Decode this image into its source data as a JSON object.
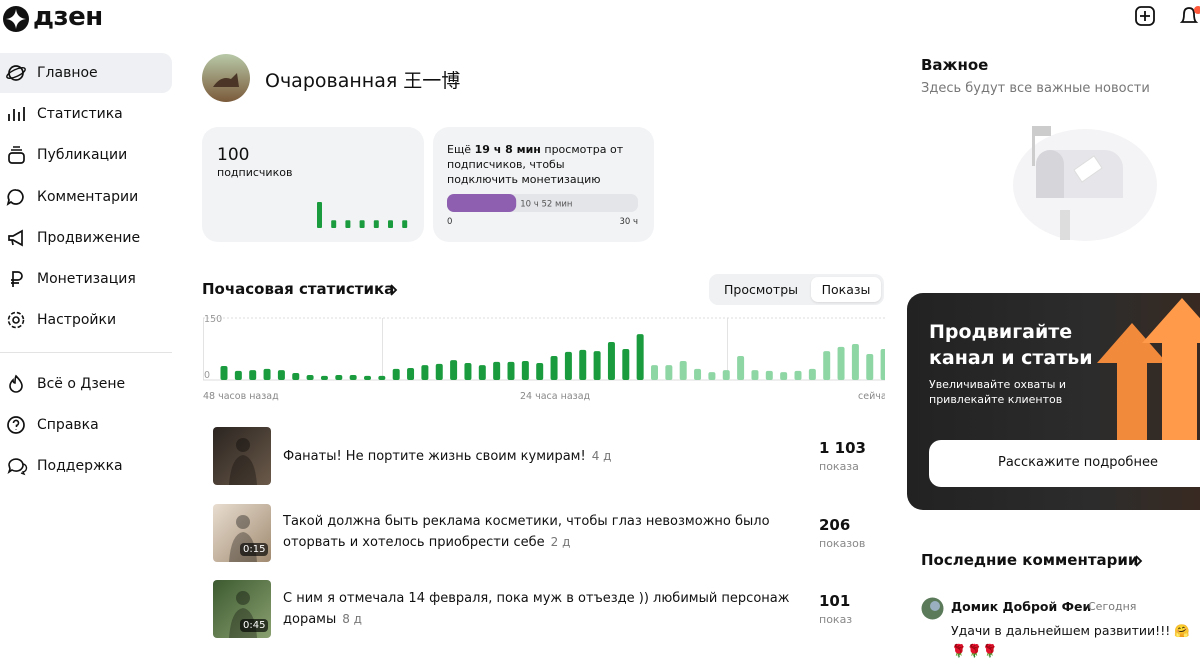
{
  "header": {
    "logo": "дзен"
  },
  "nav": [
    "Главное",
    "Статистика",
    "Публикации",
    "Комментарии",
    "Продвижение",
    "Монетизация",
    "Настройки"
  ],
  "nav_secondary": [
    "Всё о Дзене",
    "Справка",
    "Поддержка"
  ],
  "channel": {
    "name": "Очарованная 王一博"
  },
  "subscribers": {
    "count": "100",
    "label": "подписчиков",
    "trend": [
      100,
      30,
      30,
      30,
      30,
      30,
      30
    ],
    "color": "#1a9c3e"
  },
  "monetization": {
    "text_before": "Ещё ",
    "remaining": "19 ч 8 мин",
    "text_after": " просмотра от подписчиков, чтобы подключить монетизацию",
    "progress": {
      "value": 10.87,
      "value_label": "10 ч 52 мин",
      "min": 0,
      "max": 30,
      "min_label": "0",
      "max_label": "30 ч",
      "color": "#8e5fb0"
    }
  },
  "hourly": {
    "title": "Почасовая статистика",
    "tabs": [
      "Просмотры",
      "Показы"
    ],
    "active_tab": 1,
    "chart_data": {
      "type": "bar",
      "ylim": [
        0,
        150
      ],
      "yticks": [
        0,
        150
      ],
      "x_labels": [
        "48 часов назад",
        "24 часа назад",
        "сейчас"
      ],
      "series": [
        {
          "color": "#1a9c3e",
          "values": [
            34,
            22,
            24,
            27,
            24,
            17,
            12,
            10,
            12,
            12,
            10,
            10,
            27,
            29,
            36,
            39,
            48,
            41,
            36,
            44,
            44,
            46,
            41,
            58,
            68,
            73,
            70,
            92,
            75,
            111,
            null,
            null,
            null,
            null,
            null,
            null,
            null,
            null,
            null,
            null,
            null,
            null,
            null,
            null,
            null,
            null,
            null
          ]
        },
        {
          "color": "#8fd6a5",
          "values": [
            null,
            null,
            null,
            null,
            null,
            null,
            null,
            null,
            null,
            null,
            null,
            null,
            null,
            null,
            null,
            null,
            null,
            null,
            null,
            null,
            null,
            null,
            null,
            null,
            null,
            null,
            null,
            null,
            null,
            null,
            36,
            36,
            46,
            27,
            19,
            24,
            58,
            24,
            22,
            19,
            22,
            27,
            70,
            80,
            87,
            63,
            75
          ]
        }
      ]
    }
  },
  "publications": [
    {
      "title": "Фанаты! Не портите жизнь своим кумирам!",
      "age": "4 д",
      "count": "1 103",
      "count_label": "показа"
    },
    {
      "title": "Такой должна быть реклама косметики, чтобы глаз невозможно было оторвать и хотелось приобрести себе",
      "age": "2 д",
      "count": "206",
      "count_label": "показов",
      "duration": "0:15"
    },
    {
      "title": "С ним я отмечала 14 февраля, пока муж в отъезде )) любимый персонаж дорамы",
      "age": "8 д",
      "count": "101",
      "count_label": "показ",
      "duration": "0:45"
    }
  ],
  "important": {
    "title": "Важное",
    "subtitle": "Здесь будут все важные новости"
  },
  "promo": {
    "title": "Продвигайте канал и статьи",
    "text": "Увеличивайте охваты и привлекайте клиентов",
    "button": "Расскажите подробнее"
  },
  "comments": {
    "title": "Последние комментарии",
    "items": [
      {
        "author": "Домик Доброй Феи",
        "time": "Сегодня",
        "text": "Удачи в дальнейшем развитии!!! 🤗 🌹🌹🌹"
      }
    ]
  }
}
